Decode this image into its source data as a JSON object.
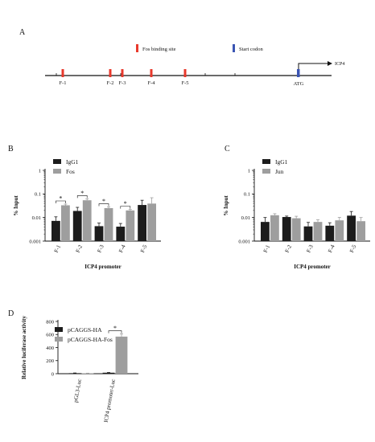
{
  "panel_labels": {
    "a": "A",
    "b": "B",
    "c": "C",
    "d": "D"
  },
  "colors": {
    "dark": "#1c1c1c",
    "light": "#9e9e9e",
    "site": "#e8392c",
    "codon": "#3b55b3"
  },
  "panel_a": {
    "legend_site": "Fos binding site",
    "legend_codon": "Start codon",
    "gene_label": "ICP4",
    "atg_label": "ATG",
    "sites": [
      "F-1",
      "F-2",
      "F-3",
      "F-4",
      "F-5"
    ]
  },
  "chart_data": [
    {
      "panel": "B",
      "type": "bar",
      "yscale": "log",
      "ylim": [
        0.001,
        1
      ],
      "yticks": [
        "0.001",
        "0.01",
        "0.1",
        "1"
      ],
      "ylabel": "% Input",
      "xlabel": "ICP4 promoter",
      "categories": [
        "F-1",
        "F-2",
        "F-3",
        "F-4",
        "F-5"
      ],
      "legend_position": "top-left",
      "series": [
        {
          "name": "IgG1",
          "color": "#1c1c1c",
          "values": [
            0.0072,
            0.019,
            0.0043,
            0.0041,
            0.034
          ],
          "errors": [
            0.0035,
            0.008,
            0.0015,
            0.0015,
            0.02
          ]
        },
        {
          "name": "Fos",
          "color": "#9e9e9e",
          "values": [
            0.033,
            0.054,
            0.025,
            0.02,
            0.039
          ],
          "errors": [
            0.004,
            0.008,
            0.003,
            0.002,
            0.03
          ]
        }
      ],
      "significance": [
        {
          "category": "F-1",
          "label": "*"
        },
        {
          "category": "F-2",
          "label": "*"
        },
        {
          "category": "F-3",
          "label": "*"
        },
        {
          "category": "F-4",
          "label": "*"
        }
      ]
    },
    {
      "panel": "C",
      "type": "bar",
      "yscale": "log",
      "ylim": [
        0.001,
        1
      ],
      "yticks": [
        "0.001",
        "0.01",
        "0.1",
        "1"
      ],
      "ylabel": "% Input",
      "xlabel": "ICP4 promoter",
      "categories": [
        "F-1",
        "F-2",
        "F-3",
        "F-4",
        "F-5"
      ],
      "legend_position": "top-left",
      "series": [
        {
          "name": "IgG1",
          "color": "#1c1c1c",
          "values": [
            0.0065,
            0.0105,
            0.0042,
            0.0045,
            0.012
          ],
          "errors": [
            0.0035,
            0.001,
            0.002,
            0.0015,
            0.006
          ]
        },
        {
          "name": "Jun",
          "color": "#9e9e9e",
          "values": [
            0.0125,
            0.0093,
            0.0065,
            0.0076,
            0.007
          ],
          "errors": [
            0.002,
            0.002,
            0.0015,
            0.0025,
            0.003
          ]
        }
      ],
      "significance": []
    },
    {
      "panel": "D",
      "type": "bar",
      "yscale": "linear",
      "ylim": [
        0,
        800
      ],
      "yticks": [
        "0",
        "200",
        "400",
        "600",
        "800"
      ],
      "ylabel": "Relative luciferase activity",
      "xlabel": "",
      "categories": [
        "pGL3-Luc",
        "ICP4 promoter-Luc"
      ],
      "legend_position": "top-left",
      "series": [
        {
          "name": "pCAGGS-HA",
          "color": "#1c1c1c",
          "values": [
            8,
            15
          ],
          "errors": [
            3,
            4
          ]
        },
        {
          "name": "pCAGGS-HA-Fos",
          "color": "#9e9e9e",
          "values": [
            6,
            568
          ],
          "errors": [
            2,
            40
          ]
        }
      ],
      "significance": [
        {
          "category": "ICP4 promoter-Luc",
          "label": "*"
        }
      ]
    }
  ]
}
